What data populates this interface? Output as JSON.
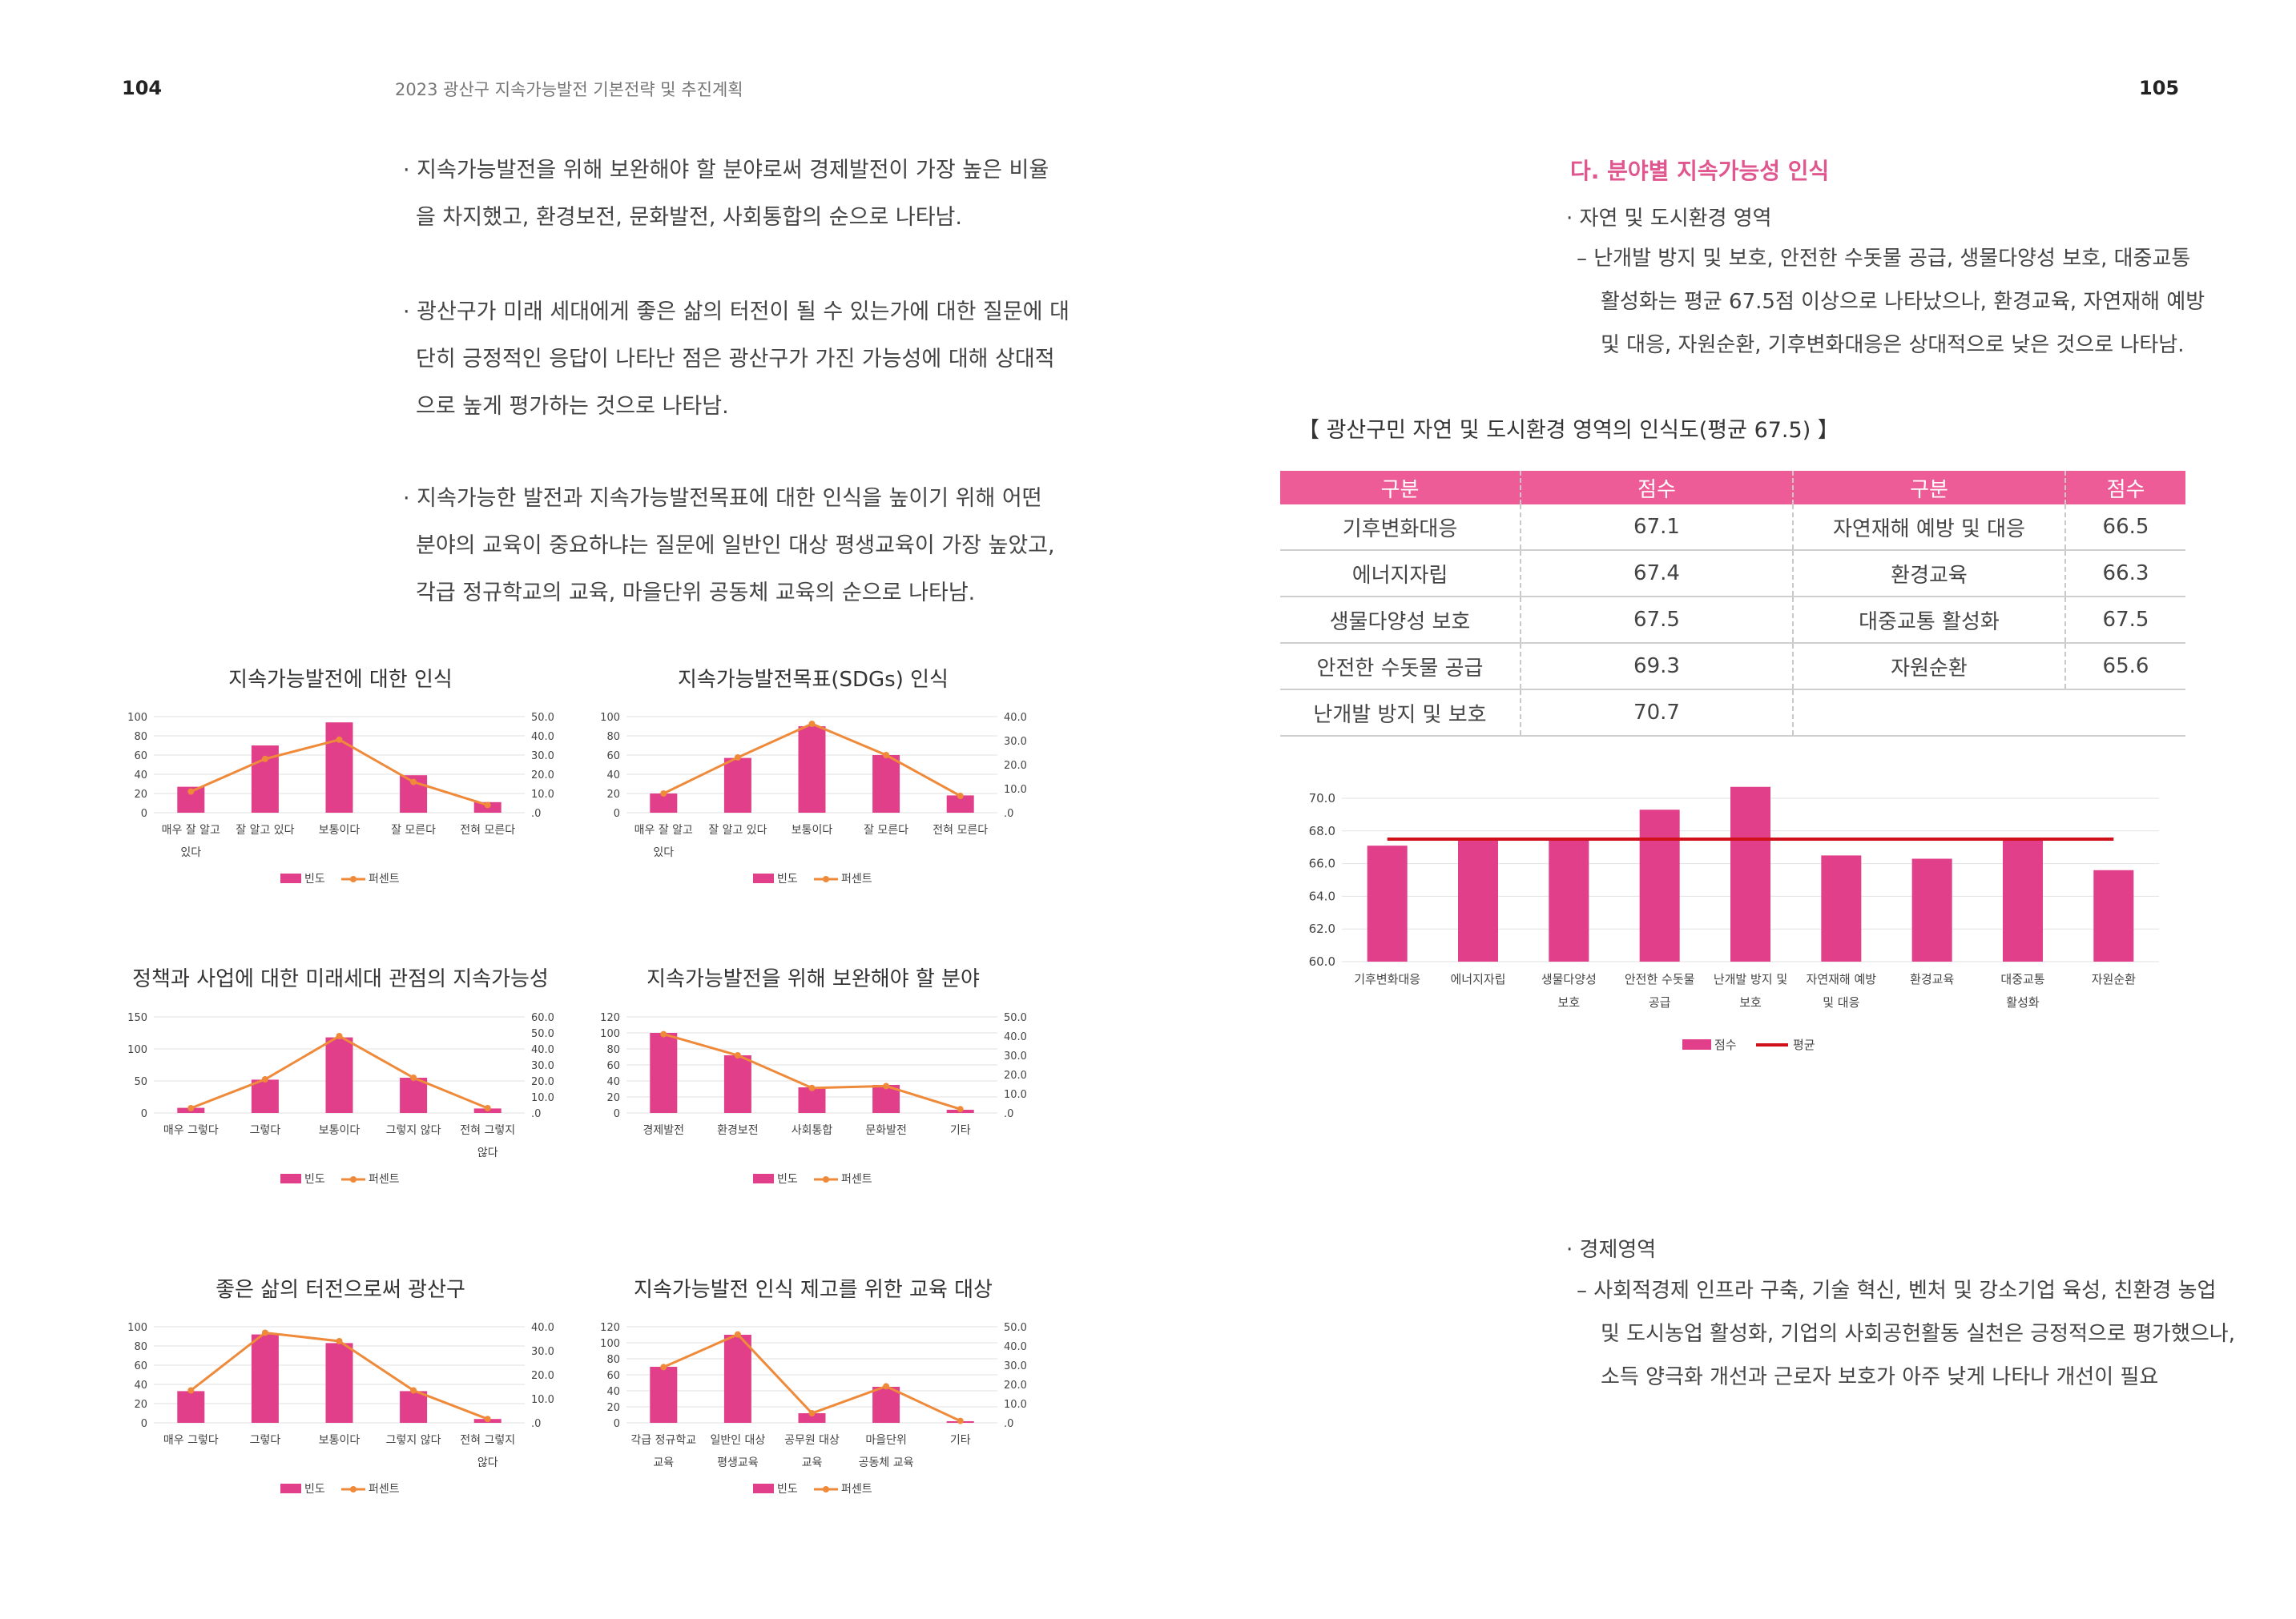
{
  "header": {
    "left_page_number": "104",
    "right_page_number": "105",
    "running_title": "2023 광산구 지속가능발전 기본전략 및 추진계획"
  },
  "left_paragraphs": [
    {
      "lines": [
        "· 지속가능발전을 위해 보완해야 할 분야로써 경제발전이 가장 높은 비율",
        "을 차지했고, 환경보전, 문화발전, 사회통합의 순으로 나타남."
      ]
    },
    {
      "lines": [
        "· 광산구가 미래 세대에게 좋은 삶의 터전이 될 수 있는가에 대한 질문에 대",
        "단히 긍정적인 응답이 나타난 점은 광산구가 가진 가능성에 대해 상대적",
        "으로 높게 평가하는 것으로 나타남."
      ]
    },
    {
      "lines": [
        "· 지속가능한 발전과 지속가능발전목표에 대한 인식을 높이기 위해 어떤",
        "분야의 교육이 중요하냐는 질문에 일반인 대상 평생교육이 가장 높았고,",
        "각급 정규학교의 교육, 마을단위 공동체 교육의 순으로 나타남."
      ]
    }
  ],
  "chart_data": [
    {
      "type": "bar",
      "title": "지속가능발전에 대한 인식",
      "categories": [
        [
          "매우 잘 알고",
          "있다"
        ],
        [
          "잘 알고 있다"
        ],
        [
          "보통이다"
        ],
        [
          "잘 모른다"
        ],
        [
          "전혀 모른다"
        ]
      ],
      "series": [
        {
          "name": "빈도",
          "type": "bar",
          "axis": "left",
          "values": [
            27,
            70,
            94,
            39,
            11
          ]
        },
        {
          "name": "퍼센트",
          "type": "line",
          "axis": "right",
          "values": [
            11,
            28,
            38,
            16,
            4
          ]
        }
      ],
      "y_left": {
        "min": 0,
        "max": 100,
        "step": 20,
        "ticks": [
          "0",
          "20",
          "40",
          "60",
          "80",
          "100"
        ]
      },
      "y_right": {
        "min": 0,
        "max": 50,
        "step": 10,
        "ticks": [
          ".0",
          "10.0",
          "20.0",
          "30.0",
          "40.0",
          "50.0"
        ]
      },
      "legend": [
        "빈도",
        "퍼센트"
      ]
    },
    {
      "type": "bar",
      "title": "지속가능발전목표(SDGs) 인식",
      "categories": [
        [
          "매우 잘 알고",
          "있다"
        ],
        [
          "잘 알고 있다"
        ],
        [
          "보통이다"
        ],
        [
          "잘 모른다"
        ],
        [
          "전혀 모른다"
        ]
      ],
      "series": [
        {
          "name": "빈도",
          "type": "bar",
          "axis": "left",
          "values": [
            20,
            57,
            90,
            60,
            18
          ]
        },
        {
          "name": "퍼센트",
          "type": "line",
          "axis": "right",
          "values": [
            8,
            23,
            37,
            24,
            7
          ]
        }
      ],
      "y_left": {
        "min": 0,
        "max": 100,
        "step": 20,
        "ticks": [
          "0",
          "20",
          "40",
          "60",
          "80",
          "100"
        ]
      },
      "y_right": {
        "min": 0,
        "max": 40,
        "step": 10,
        "ticks": [
          ".0",
          "10.0",
          "20.0",
          "30.0",
          "40.0"
        ]
      },
      "legend": [
        "빈도",
        "퍼센트"
      ]
    },
    {
      "type": "bar",
      "title": "정책과 사업에 대한 미래세대 관점의 지속가능성",
      "categories": [
        [
          "매우 그렇다"
        ],
        [
          "그렇다"
        ],
        [
          "보통이다"
        ],
        [
          "그렇지 않다"
        ],
        [
          "전혀 그렇지",
          "않다"
        ]
      ],
      "series": [
        {
          "name": "빈도",
          "type": "bar",
          "axis": "left",
          "values": [
            8,
            52,
            118,
            55,
            7
          ]
        },
        {
          "name": "퍼센트",
          "type": "line",
          "axis": "right",
          "values": [
            3,
            21,
            48,
            22,
            3
          ]
        }
      ],
      "y_left": {
        "min": 0,
        "max": 150,
        "step": 50,
        "ticks": [
          "0",
          "50",
          "100",
          "150"
        ]
      },
      "y_right": {
        "min": 0,
        "max": 60,
        "step": 10,
        "ticks": [
          ".0",
          "10.0",
          "20.0",
          "30.0",
          "40.0",
          "50.0",
          "60.0"
        ]
      },
      "legend": [
        "빈도",
        "퍼센트"
      ]
    },
    {
      "type": "bar",
      "title": "지속가능발전을 위해 보완해야 할 분야",
      "categories": [
        [
          "경제발전"
        ],
        [
          "환경보전"
        ],
        [
          "사회통합"
        ],
        [
          "문화발전"
        ],
        [
          "기타"
        ]
      ],
      "series": [
        {
          "name": "빈도",
          "type": "bar",
          "axis": "left",
          "values": [
            100,
            72,
            32,
            35,
            4
          ]
        },
        {
          "name": "퍼센트",
          "type": "line",
          "axis": "right",
          "values": [
            41,
            30,
            13,
            14,
            2
          ]
        }
      ],
      "y_left": {
        "min": 0,
        "max": 120,
        "step": 20,
        "ticks": [
          "0",
          "20",
          "40",
          "60",
          "80",
          "100",
          "120"
        ]
      },
      "y_right": {
        "min": 0,
        "max": 50,
        "step": 10,
        "ticks": [
          ".0",
          "10.0",
          "20.0",
          "30.0",
          "40.0",
          "50.0"
        ]
      },
      "legend": [
        "빈도",
        "퍼센트"
      ]
    },
    {
      "type": "bar",
      "title": "좋은 삶의 터전으로써 광산구",
      "categories": [
        [
          "매우 그렇다"
        ],
        [
          "그렇다"
        ],
        [
          "보통이다"
        ],
        [
          "그렇지 않다"
        ],
        [
          "전혀 그렇지",
          "않다"
        ]
      ],
      "series": [
        {
          "name": "빈도",
          "type": "bar",
          "axis": "left",
          "values": [
            33,
            92,
            83,
            33,
            4
          ]
        },
        {
          "name": "퍼센트",
          "type": "line",
          "axis": "right",
          "values": [
            13.5,
            37.5,
            34,
            13.5,
            1.6
          ]
        }
      ],
      "y_left": {
        "min": 0,
        "max": 100,
        "step": 20,
        "ticks": [
          "0",
          "20",
          "40",
          "60",
          "80",
          "100"
        ]
      },
      "y_right": {
        "min": 0,
        "max": 40,
        "step": 10,
        "ticks": [
          ".0",
          "10.0",
          "20.0",
          "30.0",
          "40.0"
        ]
      },
      "legend": [
        "빈도",
        "퍼센트"
      ]
    },
    {
      "type": "bar",
      "title": "지속가능발전 인식 제고를 위한 교육 대상",
      "categories": [
        [
          "각급 정규학교",
          "교육"
        ],
        [
          "일반인 대상",
          "평생교육"
        ],
        [
          "공무원 대상",
          "교육"
        ],
        [
          "마을단위",
          "공동체 교육"
        ],
        [
          "기타"
        ]
      ],
      "series": [
        {
          "name": "빈도",
          "type": "bar",
          "axis": "left",
          "values": [
            70,
            110,
            12,
            45,
            2
          ]
        },
        {
          "name": "퍼센트",
          "type": "line",
          "axis": "right",
          "values": [
            29,
            46,
            5,
            19,
            1
          ]
        }
      ],
      "y_left": {
        "min": 0,
        "max": 120,
        "step": 20,
        "ticks": [
          "0",
          "20",
          "40",
          "60",
          "80",
          "100",
          "120"
        ]
      },
      "y_right": {
        "min": 0,
        "max": 50,
        "step": 10,
        "ticks": [
          ".0",
          "10.0",
          "20.0",
          "30.0",
          "40.0",
          "50.0"
        ]
      },
      "legend": [
        "빈도",
        "퍼센트"
      ]
    },
    {
      "type": "bar",
      "title": "",
      "categories": [
        [
          "기후변화대응"
        ],
        [
          "에너지자립"
        ],
        [
          "생물다양성",
          "보호"
        ],
        [
          "안전한 수돗물",
          "공급"
        ],
        [
          "난개발 방지 및",
          "보호"
        ],
        [
          "자연재해 예방",
          "및 대응"
        ],
        [
          "환경교육"
        ],
        [
          "대중교통",
          "활성화"
        ],
        [
          "자원순환"
        ]
      ],
      "series": [
        {
          "name": "점수",
          "type": "bar",
          "values": [
            67.1,
            67.4,
            67.5,
            69.3,
            70.7,
            66.5,
            66.3,
            67.5,
            65.6
          ]
        },
        {
          "name": "평균",
          "type": "line",
          "values": [
            67.5,
            67.5,
            67.5,
            67.5,
            67.5,
            67.5,
            67.5,
            67.5,
            67.5
          ]
        }
      ],
      "y_left": {
        "min": 60,
        "max": 70,
        "step": 2,
        "ticks": [
          "60.0",
          "62.0",
          "64.0",
          "66.0",
          "68.0",
          "70.0"
        ]
      },
      "legend": [
        "점수",
        "평균"
      ]
    }
  ],
  "right": {
    "section_title": "다. 분야별 지속가능성 인식",
    "env_bullet": "· 자연 및 도시환경 영역",
    "env_lines": [
      "– 난개발 방지 및 보호, 안전한 수돗물 공급, 생물다양성 보호, 대중교통",
      "활성화는 평균 67.5점 이상으로 나타났으나, 환경교육, 자연재해 예방",
      "및 대응, 자원순환, 기후변화대응은 상대적으로 낮은 것으로 나타남."
    ],
    "table_title": "【 광산구민 자연 및 도시환경 영역의 인식도(평균 67.5) 】",
    "table_headers": [
      "구분",
      "점수",
      "구분",
      "점수"
    ],
    "table_rows": [
      [
        "기후변화대응",
        "67.1",
        "자연재해 예방 및 대응",
        "66.5"
      ],
      [
        "에너지자립",
        "67.4",
        "환경교육",
        "66.3"
      ],
      [
        "생물다양성 보호",
        "67.5",
        "대중교통 활성화",
        "67.5"
      ],
      [
        "안전한 수돗물 공급",
        "69.3",
        "자원순환",
        "65.6"
      ],
      [
        "난개발 방지 및 보호",
        "70.7",
        "",
        ""
      ]
    ],
    "econ_bullet": "· 경제영역",
    "econ_lines": [
      "– 사회적경제 인프라 구축, 기술 혁신, 벤처 및 강소기업 육성, 친환경 농업",
      "및 도시농업 활성화, 기업의 사회공헌활동 실천은 긍정적으로 평가했으나,",
      "소득 양극화 개선과 근로자 보호가 아주 낮게 나타나 개선이 필요"
    ]
  },
  "colors": {
    "bar": "#e23f8a",
    "line": "#ee8a3a",
    "avg_line": "#d0111b",
    "accent": "#e0568f",
    "table_header": "#ee5c98"
  }
}
